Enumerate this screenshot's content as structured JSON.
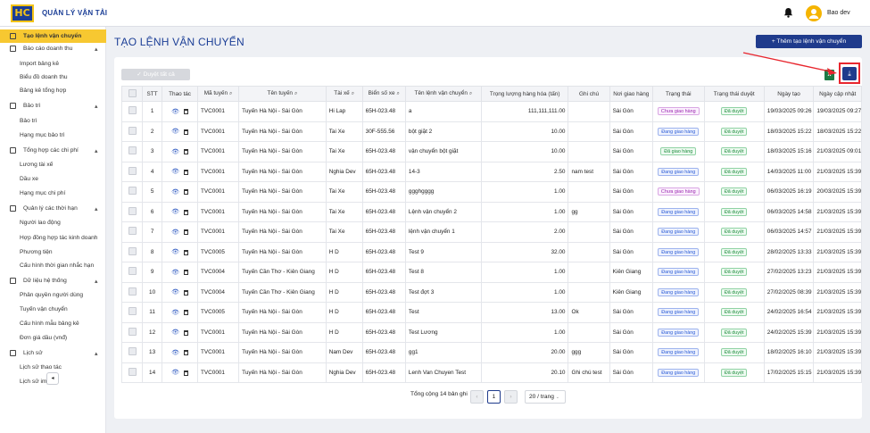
{
  "app": {
    "title": "QUẢN LÝ VẬN TẢI",
    "logo_text": "HC",
    "user": "Bao dev"
  },
  "sidebar": {
    "items": [
      {
        "label": "Tạo lệnh vận chuyển",
        "type": "group",
        "active": true
      },
      {
        "label": "Báo cáo doanh thu",
        "type": "group",
        "chevron": "▴"
      },
      {
        "label": "Import bảng kê",
        "type": "sub"
      },
      {
        "label": "Biểu đồ doanh thu",
        "type": "sub"
      },
      {
        "label": "Bảng kê tổng hợp",
        "type": "sub"
      },
      {
        "label": "Bảo trì",
        "type": "group",
        "chevron": "▴"
      },
      {
        "label": "Bảo trì",
        "type": "sub"
      },
      {
        "label": "Hạng mục bảo trì",
        "type": "sub"
      },
      {
        "label": "Tổng hợp các chi phí",
        "type": "group",
        "chevron": "▴"
      },
      {
        "label": "Lương tài xế",
        "type": "sub"
      },
      {
        "label": "Dầu xe",
        "type": "sub"
      },
      {
        "label": "Hạng mục chi phí",
        "type": "sub"
      },
      {
        "label": "Quản lý các thời hạn",
        "type": "group",
        "chevron": "▴"
      },
      {
        "label": "Người lao động",
        "type": "sub"
      },
      {
        "label": "Hợp đồng hợp tác kinh doanh",
        "type": "sub"
      },
      {
        "label": "Phương tiện",
        "type": "sub"
      },
      {
        "label": "Cấu hình thời gian nhắc hạn",
        "type": "sub"
      },
      {
        "label": "Dữ liệu hệ thống",
        "type": "group",
        "chevron": "▴"
      },
      {
        "label": "Phân quyền người dùng",
        "type": "sub"
      },
      {
        "label": "Tuyến vận chuyển",
        "type": "sub"
      },
      {
        "label": "Cấu hình mẫu bảng kê",
        "type": "sub"
      },
      {
        "label": "Đơn giá dầu (vnđ)",
        "type": "sub"
      },
      {
        "label": "Lịch sử",
        "type": "group",
        "chevron": "▴"
      },
      {
        "label": "Lịch sử thao tác",
        "type": "sub"
      },
      {
        "label": "Lịch sử import",
        "type": "sub"
      }
    ]
  },
  "page": {
    "title": "TẠO LỆNH VẬN CHUYỂN",
    "add_button": "+ Thêm tạo lệnh vận chuyển",
    "approve_all": "✓ Duyệt tất cả"
  },
  "table": {
    "headers": [
      "STT",
      "Thao tác",
      "Mã tuyến",
      "Tên tuyến",
      "Tài xế",
      "Biển số xe",
      "Tên lệnh vận chuyển",
      "Trọng lượng hàng hóa (tấn)",
      "Ghi chú",
      "Nơi giao hàng",
      "Trạng thái",
      "Trạng thái duyệt",
      "Ngày tạo",
      "Ngày cập nhật"
    ],
    "rows": [
      {
        "stt": "1",
        "ma": "TVC0001",
        "ten": "Tuyến Hà Nội - Sài Gòn",
        "taixe": "Hi Lap",
        "bienso": "65H-023.48",
        "lenh": "a",
        "tl": "111,111,111.00",
        "ghichu": "",
        "noi": "Sài Gòn",
        "tt": "Chưa giao hàng",
        "ttc": "purple",
        "duyet": "Đã duyệt",
        "tao": "19/03/2025 09:26",
        "capnhat": "19/03/2025 09:27"
      },
      {
        "stt": "2",
        "ma": "TVC0001",
        "ten": "Tuyến Hà Nội - Sài Gòn",
        "taixe": "Tai Xe",
        "bienso": "30F-555.56",
        "lenh": "bột giặt 2",
        "tl": "10.00",
        "ghichu": "",
        "noi": "Sài Gòn",
        "tt": "Đang giao hàng",
        "ttc": "blue",
        "duyet": "Đã duyệt",
        "tao": "18/03/2025 15:22",
        "capnhat": "18/03/2025 15:22"
      },
      {
        "stt": "3",
        "ma": "TVC0001",
        "ten": "Tuyến Hà Nội - Sài Gòn",
        "taixe": "Tai Xe",
        "bienso": "65H-023.48",
        "lenh": "vận chuyển bột giặt",
        "tl": "10.00",
        "ghichu": "",
        "noi": "Sài Gòn",
        "tt": "Đã giao hàng",
        "ttc": "green",
        "duyet": "Đã duyệt",
        "tao": "18/03/2025 15:16",
        "capnhat": "21/03/2025 09:01"
      },
      {
        "stt": "4",
        "ma": "TVC0001",
        "ten": "Tuyến Hà Nội - Sài Gòn",
        "taixe": "Nghia Dev",
        "bienso": "65H-023.48",
        "lenh": "14-3",
        "tl": "2.50",
        "ghichu": "nam test",
        "noi": "Sài Gòn",
        "tt": "Đang giao hàng",
        "ttc": "blue",
        "duyet": "Đã duyệt",
        "tao": "14/03/2025 11:00",
        "capnhat": "21/03/2025 15:39"
      },
      {
        "stt": "5",
        "ma": "TVC0001",
        "ten": "Tuyến Hà Nội - Sài Gòn",
        "taixe": "Tai Xe",
        "bienso": "65H-023.48",
        "lenh": "ggghgggg",
        "tl": "1.00",
        "ghichu": "",
        "noi": "Sài Gòn",
        "tt": "Chưa giao hàng",
        "ttc": "purple",
        "duyet": "Đã duyệt",
        "tao": "06/03/2025 16:19",
        "capnhat": "20/03/2025 15:39"
      },
      {
        "stt": "6",
        "ma": "TVC0001",
        "ten": "Tuyến Hà Nội - Sài Gòn",
        "taixe": "Tai Xe",
        "bienso": "65H-023.48",
        "lenh": "Lệnh vận chuyển 2",
        "tl": "1.00",
        "ghichu": "gg",
        "noi": "Sài Gòn",
        "tt": "Đang giao hàng",
        "ttc": "blue",
        "duyet": "Đã duyệt",
        "tao": "06/03/2025 14:58",
        "capnhat": "21/03/2025 15:39"
      },
      {
        "stt": "7",
        "ma": "TVC0001",
        "ten": "Tuyến Hà Nội - Sài Gòn",
        "taixe": "Tai Xe",
        "bienso": "65H-023.48",
        "lenh": "lệnh vận chuyển 1",
        "tl": "2.00",
        "ghichu": "",
        "noi": "Sài Gòn",
        "tt": "Đang giao hàng",
        "ttc": "blue",
        "duyet": "Đã duyệt",
        "tao": "06/03/2025 14:57",
        "capnhat": "21/03/2025 15:39"
      },
      {
        "stt": "8",
        "ma": "TVC0005",
        "ten": "Tuyến Hà Nội - Sài Gòn",
        "taixe": "H D",
        "bienso": "65H-023.48",
        "lenh": "Test 9",
        "tl": "32.00",
        "ghichu": "",
        "noi": "Sài Gòn",
        "tt": "Đang giao hàng",
        "ttc": "blue",
        "duyet": "Đã duyệt",
        "tao": "28/02/2025 13:33",
        "capnhat": "21/03/2025 15:39"
      },
      {
        "stt": "9",
        "ma": "TVC0004",
        "ten": "Tuyến Cần Thơ - Kiên Giang",
        "taixe": "H D",
        "bienso": "65H-023.48",
        "lenh": "Test 8",
        "tl": "1.00",
        "ghichu": "",
        "noi": "Kiên Giang",
        "tt": "Đang giao hàng",
        "ttc": "blue",
        "duyet": "Đã duyệt",
        "tao": "27/02/2025 13:23",
        "capnhat": "21/03/2025 15:39"
      },
      {
        "stt": "10",
        "ma": "TVC0004",
        "ten": "Tuyến Cần Thơ - Kiên Giang",
        "taixe": "H D",
        "bienso": "65H-023.48",
        "lenh": "Test đợt 3",
        "tl": "1.00",
        "ghichu": "",
        "noi": "Kiên Giang",
        "tt": "Đang giao hàng",
        "ttc": "blue",
        "duyet": "Đã duyệt",
        "tao": "27/02/2025 08:39",
        "capnhat": "21/03/2025 15:39"
      },
      {
        "stt": "11",
        "ma": "TVC0005",
        "ten": "Tuyến Hà Nội - Sài Gòn",
        "taixe": "H D",
        "bienso": "65H-023.48",
        "lenh": "Test",
        "tl": "13.00",
        "ghichu": "Ok",
        "noi": "Sài Gòn",
        "tt": "Đang giao hàng",
        "ttc": "blue",
        "duyet": "Đã duyệt",
        "tao": "24/02/2025 16:54",
        "capnhat": "21/03/2025 15:39"
      },
      {
        "stt": "12",
        "ma": "TVC0001",
        "ten": "Tuyến Hà Nội - Sài Gòn",
        "taixe": "H D",
        "bienso": "65H-023.48",
        "lenh": "Test Lương",
        "tl": "1.00",
        "ghichu": "",
        "noi": "Sài Gòn",
        "tt": "Đang giao hàng",
        "ttc": "blue",
        "duyet": "Đã duyệt",
        "tao": "24/02/2025 15:39",
        "capnhat": "21/03/2025 15:39"
      },
      {
        "stt": "13",
        "ma": "TVC0001",
        "ten": "Tuyến Hà Nội - Sài Gòn",
        "taixe": "Nam Dev",
        "bienso": "65H-023.48",
        "lenh": "gg1",
        "tl": "20.00",
        "ghichu": "ggg",
        "noi": "Sài Gòn",
        "tt": "Đang giao hàng",
        "ttc": "blue",
        "duyet": "Đã duyệt",
        "tao": "18/02/2025 16:10",
        "capnhat": "21/03/2025 15:39"
      },
      {
        "stt": "14",
        "ma": "TVC0001",
        "ten": "Tuyến Hà Nội - Sài Gòn",
        "taixe": "Nghia Dev",
        "bienso": "65H-023.48",
        "lenh": "Lenh Van Chuyen Test",
        "tl": "20.10",
        "ghichu": "Ghi chú test",
        "noi": "Sài Gòn",
        "tt": "Đang giao hàng",
        "ttc": "blue",
        "duyet": "Đã duyệt",
        "tao": "17/02/2025 15:15",
        "capnhat": "21/03/2025 15:39"
      }
    ]
  },
  "pagination": {
    "total": "Tổng cộng 14 bản ghi",
    "current": "1",
    "page_size": "20 / trang"
  },
  "icons": {
    "bell": "bell-icon",
    "avatar": "user-avatar-icon",
    "excel": "excel-icon",
    "download": "download-icon",
    "search": "search-icon",
    "eye": "eye-icon",
    "trash": "trash-icon"
  },
  "colors": {
    "brand": "#1b3e96",
    "accent": "#f7c831",
    "button": "#1f3b8c",
    "highlight": "#e8262e"
  }
}
